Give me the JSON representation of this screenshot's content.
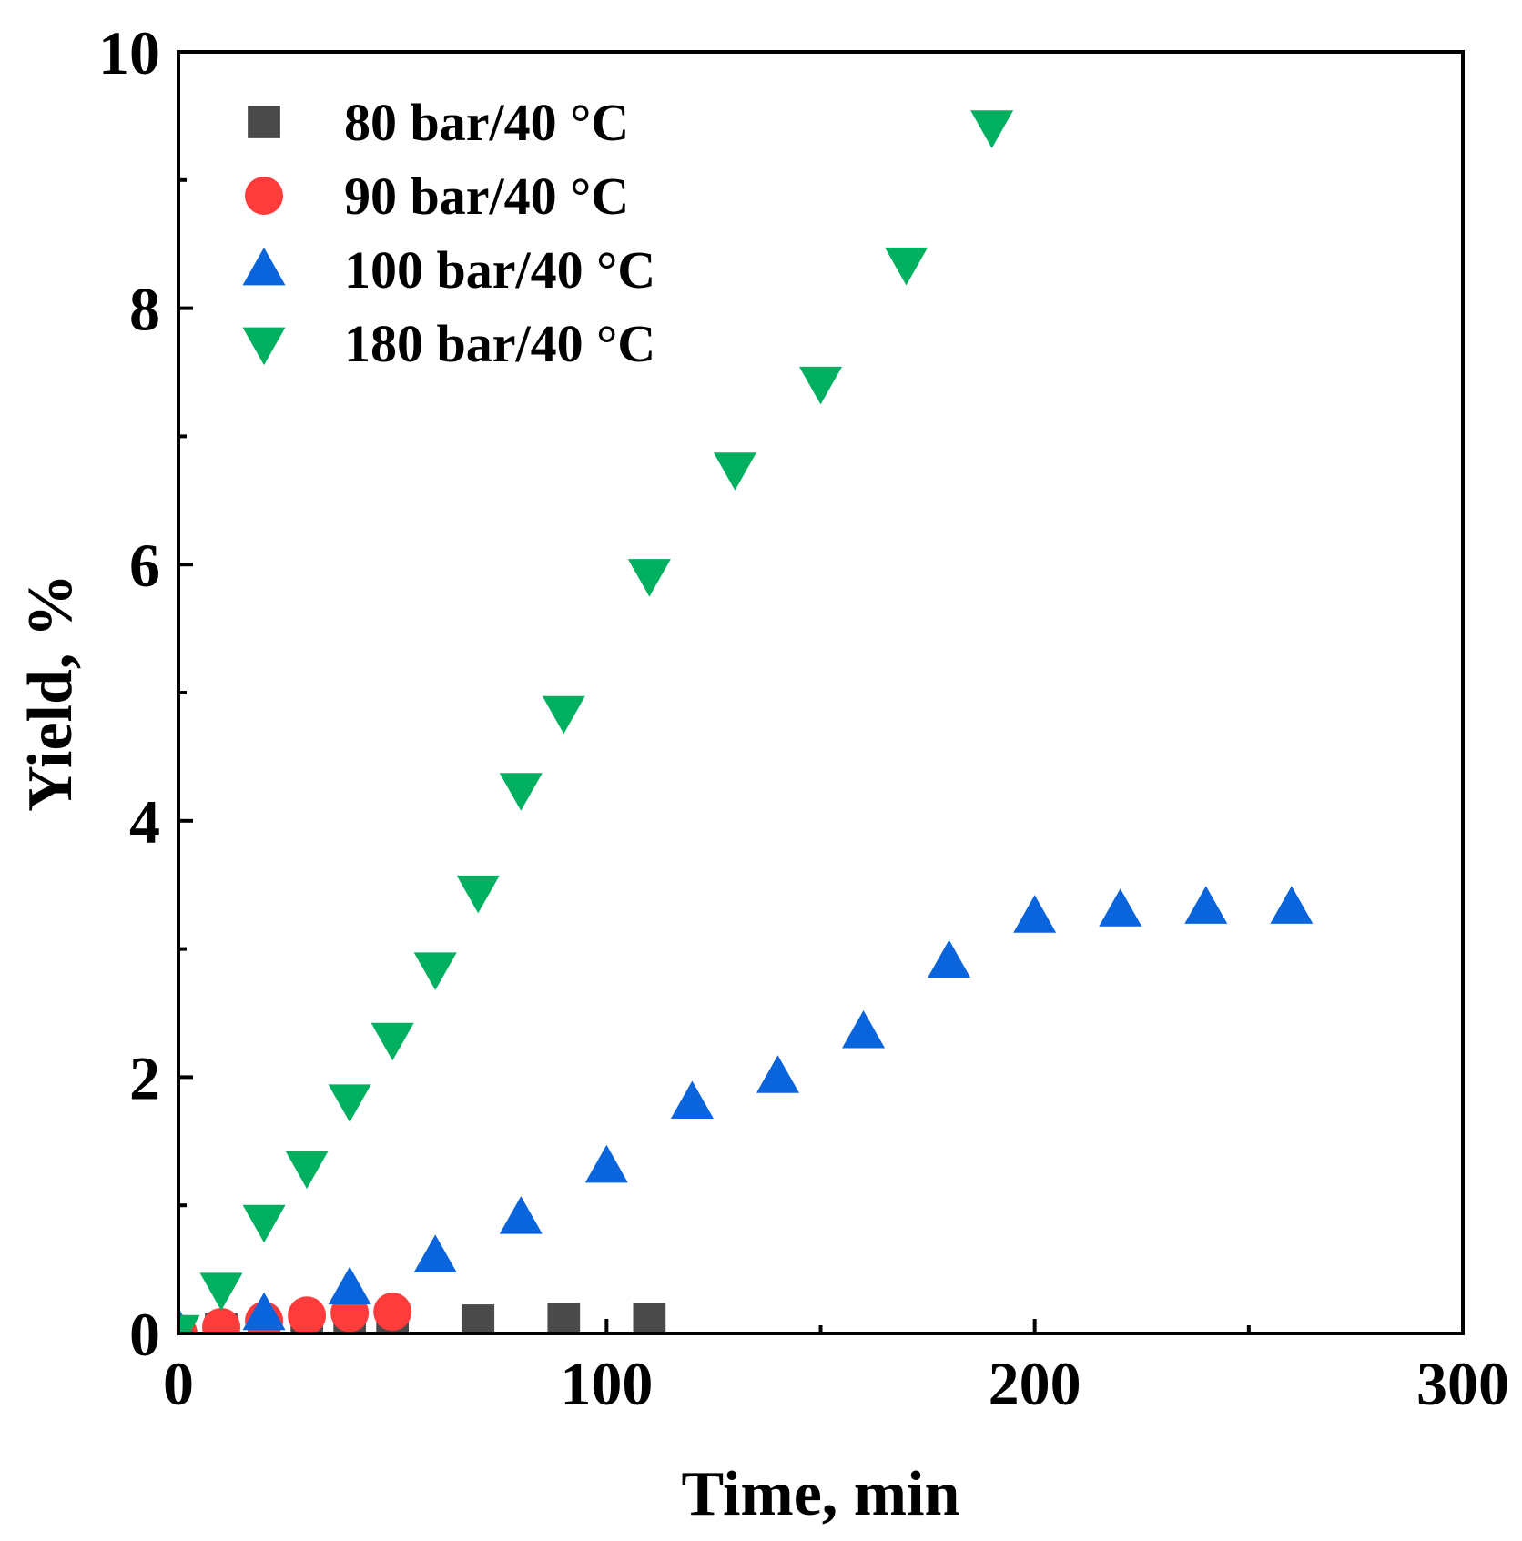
{
  "chart_data": {
    "type": "scatter",
    "title": "",
    "xlabel": "Time, min",
    "ylabel": "Yield, %",
    "xlim": [
      0,
      300
    ],
    "ylim": [
      0,
      10
    ],
    "xticks": [
      0,
      100,
      200,
      300
    ],
    "xtick_labels": [
      "0",
      "100",
      "200",
      "300"
    ],
    "yticks": [
      0,
      2,
      4,
      6,
      8,
      10
    ],
    "ytick_labels": [
      "0",
      "2",
      "4",
      "6",
      "8",
      "10"
    ],
    "x_minor_step": 50,
    "y_minor_step": 1,
    "grid": false,
    "legend_position": "top-left",
    "series": [
      {
        "name": "80 bar/40 °C",
        "marker": "square",
        "color": "#4a4a4a",
        "x": [
          0,
          10,
          20,
          30,
          40,
          50,
          70,
          90,
          110
        ],
        "y": [
          0.0,
          0.03,
          0.05,
          0.07,
          0.08,
          0.09,
          0.1,
          0.11,
          0.11
        ]
      },
      {
        "name": "90 bar/40 °C",
        "marker": "circle",
        "color": "#ff3b3b",
        "x": [
          0,
          10,
          20,
          30,
          40,
          50
        ],
        "y": [
          0.0,
          0.05,
          0.1,
          0.14,
          0.16,
          0.17
        ]
      },
      {
        "name": "100 bar/40 °C",
        "marker": "triangle-up",
        "color": "#0a64dc",
        "x": [
          0,
          20,
          40,
          60,
          80,
          100,
          120,
          140,
          160,
          180,
          200,
          220,
          240,
          260
        ],
        "y": [
          0.03,
          0.15,
          0.35,
          0.6,
          0.9,
          1.3,
          1.8,
          2.0,
          2.35,
          2.9,
          3.25,
          3.3,
          3.32,
          3.32
        ]
      },
      {
        "name": "180 bar/40 °C",
        "marker": "triangle-down",
        "color": "#00b060",
        "x": [
          0,
          10,
          20,
          30,
          40,
          50,
          60,
          70,
          80,
          90,
          110,
          130,
          150,
          170,
          190
        ],
        "y": [
          0.02,
          0.35,
          0.88,
          1.3,
          1.82,
          2.3,
          2.85,
          3.45,
          4.25,
          4.85,
          5.92,
          6.75,
          7.42,
          8.35,
          9.42
        ]
      }
    ]
  }
}
